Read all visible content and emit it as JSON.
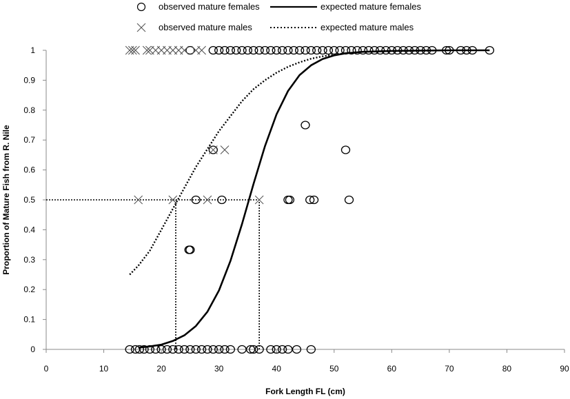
{
  "chart_data": {
    "type": "scatter",
    "title": "",
    "xlabel": "Fork Length FL (cm)",
    "ylabel": "Proportion of Mature Fish from R. Nile",
    "xlim": [
      0,
      90
    ],
    "ylim": [
      0,
      1
    ],
    "x_ticks": [
      "0",
      "10",
      "20",
      "30",
      "40",
      "50",
      "60",
      "70",
      "80",
      "90"
    ],
    "y_ticks": [
      "0",
      "0.1",
      "0.2",
      "0.3",
      "0.4",
      "0.5",
      "0.6",
      "0.7",
      "0.8",
      "0.9",
      "1"
    ],
    "grid": false,
    "legend_position": "top",
    "legend": {
      "observed_females": "observed mature females",
      "expected_females": "expected mature females",
      "observed_males": "observed mature males",
      "expected_males": "expected mature males"
    },
    "series": [
      {
        "name": "observed mature females",
        "marker": "circle",
        "points": [
          [
            14.5,
            0
          ],
          [
            15.5,
            0
          ],
          [
            16.2,
            0
          ],
          [
            17,
            0
          ],
          [
            18,
            0
          ],
          [
            19,
            0
          ],
          [
            20,
            0
          ],
          [
            21,
            0
          ],
          [
            22,
            0
          ],
          [
            23,
            0
          ],
          [
            24,
            0
          ],
          [
            25,
            0
          ],
          [
            26,
            0
          ],
          [
            27,
            0
          ],
          [
            28,
            0
          ],
          [
            29,
            0
          ],
          [
            30,
            0
          ],
          [
            31,
            0
          ],
          [
            32,
            0
          ],
          [
            34,
            0
          ],
          [
            35.5,
            0
          ],
          [
            36,
            0
          ],
          [
            37,
            0
          ],
          [
            39,
            0
          ],
          [
            40,
            0
          ],
          [
            41,
            0
          ],
          [
            42,
            0
          ],
          [
            43.5,
            0
          ],
          [
            46,
            0
          ],
          [
            24.8,
            0.333
          ],
          [
            25,
            0.333
          ],
          [
            26,
            0.5
          ],
          [
            30.5,
            0.5
          ],
          [
            42,
            0.5
          ],
          [
            42.3,
            0.5
          ],
          [
            45.8,
            0.5
          ],
          [
            46.5,
            0.5
          ],
          [
            52.6,
            0.5
          ],
          [
            29,
            0.667
          ],
          [
            52,
            0.667
          ],
          [
            45,
            0.75
          ],
          [
            25,
            1
          ],
          [
            29,
            1
          ],
          [
            30,
            1
          ],
          [
            31,
            1
          ],
          [
            32,
            1
          ],
          [
            33,
            1
          ],
          [
            34,
            1
          ],
          [
            35,
            1
          ],
          [
            36,
            1
          ],
          [
            37,
            1
          ],
          [
            38,
            1
          ],
          [
            39,
            1
          ],
          [
            40,
            1
          ],
          [
            41,
            1
          ],
          [
            42,
            1
          ],
          [
            43,
            1
          ],
          [
            44,
            1
          ],
          [
            45,
            1
          ],
          [
            46,
            1
          ],
          [
            47,
            1
          ],
          [
            48,
            1
          ],
          [
            49,
            1
          ],
          [
            50,
            1
          ],
          [
            51,
            1
          ],
          [
            52,
            1
          ],
          [
            53,
            1
          ],
          [
            54,
            1
          ],
          [
            55,
            1
          ],
          [
            56,
            1
          ],
          [
            57,
            1
          ],
          [
            58,
            1
          ],
          [
            59,
            1
          ],
          [
            60,
            1
          ],
          [
            61,
            1
          ],
          [
            62,
            1
          ],
          [
            63,
            1
          ],
          [
            64,
            1
          ],
          [
            65,
            1
          ],
          [
            66,
            1
          ],
          [
            67,
            1
          ],
          [
            69.5,
            1
          ],
          [
            70,
            1
          ],
          [
            72,
            1
          ],
          [
            73,
            1
          ],
          [
            74,
            1
          ],
          [
            77,
            1
          ]
        ]
      },
      {
        "name": "observed mature males",
        "marker": "x",
        "points": [
          [
            14.5,
            1
          ],
          [
            15,
            1
          ],
          [
            15.5,
            1
          ],
          [
            17.5,
            1
          ],
          [
            18,
            1
          ],
          [
            19,
            1
          ],
          [
            20,
            1
          ],
          [
            21,
            1
          ],
          [
            22,
            1
          ],
          [
            23,
            1
          ],
          [
            24,
            1
          ],
          [
            26,
            1
          ],
          [
            27,
            1
          ],
          [
            16,
            0.5
          ],
          [
            22,
            0.5
          ],
          [
            28,
            0.5
          ],
          [
            37,
            0.5
          ],
          [
            29,
            0.667
          ],
          [
            31,
            0.667
          ]
        ]
      },
      {
        "name": "expected mature females",
        "line": "solid",
        "points": [
          [
            16,
            0.006
          ],
          [
            18,
            0.01
          ],
          [
            20,
            0.016
          ],
          [
            22,
            0.028
          ],
          [
            24,
            0.047
          ],
          [
            26,
            0.078
          ],
          [
            28,
            0.126
          ],
          [
            30,
            0.197
          ],
          [
            32,
            0.296
          ],
          [
            34,
            0.419
          ],
          [
            36,
            0.553
          ],
          [
            38,
            0.68
          ],
          [
            40,
            0.786
          ],
          [
            42,
            0.864
          ],
          [
            44,
            0.917
          ],
          [
            46,
            0.95
          ],
          [
            48,
            0.971
          ],
          [
            50,
            0.983
          ],
          [
            52,
            0.99
          ],
          [
            55,
            0.995
          ],
          [
            60,
            0.998
          ],
          [
            65,
            0.999
          ],
          [
            70,
            1.0
          ],
          [
            75,
            1.0
          ],
          [
            77,
            1.0
          ]
        ]
      },
      {
        "name": "expected mature males",
        "line": "dotted",
        "points": [
          [
            14.5,
            0.25
          ],
          [
            16,
            0.28
          ],
          [
            18,
            0.33
          ],
          [
            20,
            0.4
          ],
          [
            22,
            0.47
          ],
          [
            24,
            0.54
          ],
          [
            26,
            0.61
          ],
          [
            28,
            0.67
          ],
          [
            30,
            0.73
          ],
          [
            32,
            0.78
          ],
          [
            34,
            0.83
          ],
          [
            36,
            0.87
          ],
          [
            38,
            0.9
          ],
          [
            40,
            0.925
          ],
          [
            42,
            0.945
          ],
          [
            44,
            0.96
          ],
          [
            46,
            0.972
          ],
          [
            48,
            0.98
          ],
          [
            50,
            0.986
          ],
          [
            52,
            0.99
          ],
          [
            55,
            0.995
          ]
        ]
      }
    ],
    "reference_lines": [
      {
        "style": "dotted",
        "points": [
          [
            0,
            0.5
          ],
          [
            37,
            0.5
          ]
        ]
      },
      {
        "style": "dotted",
        "points": [
          [
            22.5,
            0
          ],
          [
            22.5,
            0.5
          ]
        ]
      },
      {
        "style": "dotted",
        "points": [
          [
            37,
            0
          ],
          [
            37,
            0.5
          ]
        ]
      }
    ]
  }
}
